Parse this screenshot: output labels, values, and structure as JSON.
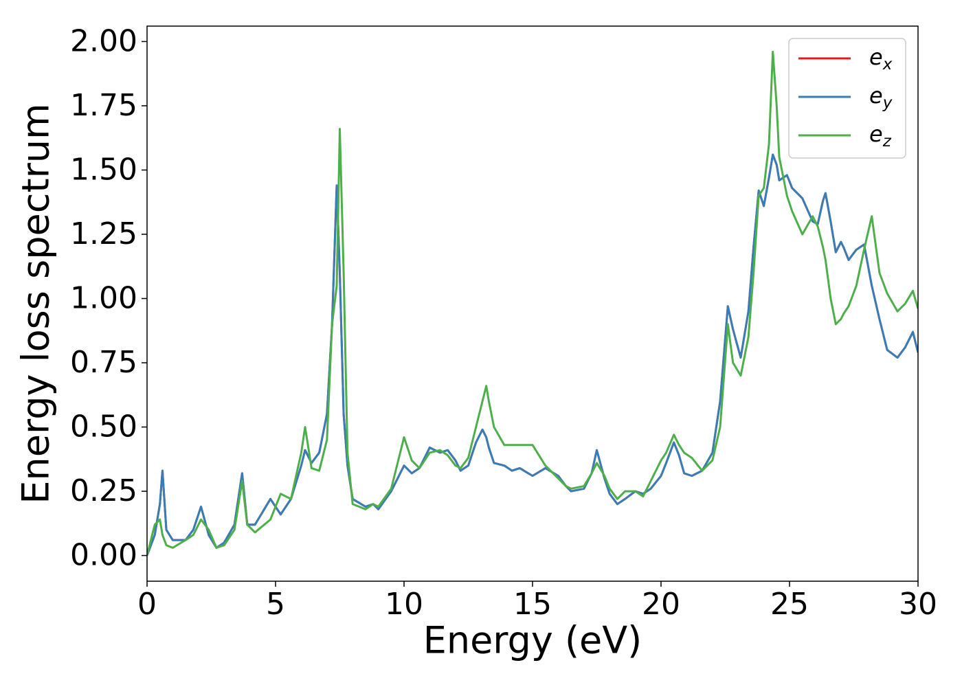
{
  "chart_data": {
    "type": "line",
    "xlabel": "Energy (eV)",
    "ylabel": "Energy loss spectrum",
    "xlim": [
      0,
      30
    ],
    "xticks": [
      0,
      5,
      10,
      15,
      20,
      25,
      30
    ],
    "ylim": [
      -0.1,
      2.06
    ],
    "yticks": [
      {
        "value": 0,
        "label": "0.00"
      },
      {
        "value": 0.25,
        "label": "0.25"
      },
      {
        "value": 0.5,
        "label": "0.50"
      },
      {
        "value": 0.75,
        "label": "0.75"
      },
      {
        "value": 1,
        "label": "1.00"
      },
      {
        "value": 1.25,
        "label": "1.25"
      },
      {
        "value": 1.5,
        "label": "1.50"
      },
      {
        "value": 1.75,
        "label": "1.75"
      },
      {
        "value": 2,
        "label": "2.00"
      }
    ],
    "legend": "upper right",
    "x": [
      0,
      0.3,
      0.5,
      0.6,
      0.75,
      1.0,
      1.5,
      1.8,
      2.1,
      2.4,
      2.7,
      3.0,
      3.4,
      3.7,
      3.9,
      4.2,
      4.8,
      5.2,
      5.6,
      6.0,
      6.15,
      6.4,
      6.7,
      7.0,
      7.2,
      7.38,
      7.5,
      7.65,
      7.8,
      8.0,
      8.5,
      8.8,
      9.0,
      9.5,
      10.0,
      10.3,
      10.6,
      11.0,
      11.4,
      11.7,
      12.0,
      12.2,
      12.5,
      12.8,
      13.05,
      13.2,
      13.3,
      13.5,
      13.9,
      14.2,
      14.5,
      15.0,
      15.5,
      16.0,
      16.3,
      16.5,
      17.0,
      17.3,
      17.5,
      17.8,
      18.0,
      18.3,
      18.6,
      19.0,
      19.3,
      19.6,
      20.0,
      20.2,
      20.5,
      20.7,
      20.9,
      21.2,
      21.6,
      22.0,
      22.3,
      22.6,
      22.8,
      23.1,
      23.4,
      23.6,
      23.8,
      24.0,
      24.2,
      24.35,
      24.5,
      24.6,
      24.9,
      25.1,
      25.5,
      25.9,
      26.1,
      26.3,
      26.4,
      26.6,
      26.8,
      27.0,
      27.1,
      27.3,
      27.6,
      27.9,
      28.2,
      28.5,
      28.8,
      29.2,
      29.5,
      29.8,
      30.0
    ],
    "series": [
      {
        "name": "e_x",
        "color": "#e41a1c",
        "values": [
          0,
          0.08,
          0.2,
          0.33,
          0.1,
          0.06,
          0.06,
          0.1,
          0.19,
          0.08,
          0.03,
          0.05,
          0.12,
          0.32,
          0.12,
          0.12,
          0.22,
          0.16,
          0.22,
          0.35,
          0.41,
          0.36,
          0.4,
          0.55,
          0.9,
          1.44,
          1.1,
          0.55,
          0.35,
          0.22,
          0.19,
          0.2,
          0.18,
          0.25,
          0.35,
          0.32,
          0.34,
          0.42,
          0.4,
          0.41,
          0.37,
          0.33,
          0.35,
          0.44,
          0.49,
          0.46,
          0.42,
          0.36,
          0.35,
          0.33,
          0.34,
          0.31,
          0.34,
          0.31,
          0.27,
          0.25,
          0.26,
          0.32,
          0.41,
          0.3,
          0.24,
          0.2,
          0.22,
          0.25,
          0.24,
          0.26,
          0.31,
          0.36,
          0.44,
          0.39,
          0.32,
          0.31,
          0.33,
          0.4,
          0.6,
          0.97,
          0.88,
          0.77,
          0.95,
          1.2,
          1.42,
          1.36,
          1.47,
          1.56,
          1.52,
          1.46,
          1.48,
          1.43,
          1.39,
          1.3,
          1.29,
          1.38,
          1.41,
          1.3,
          1.18,
          1.22,
          1.2,
          1.15,
          1.19,
          1.21,
          1.05,
          0.92,
          0.8,
          0.77,
          0.81,
          0.87,
          0.79
        ]
      },
      {
        "name": "e_y",
        "color": "#377eb8",
        "values": [
          0,
          0.08,
          0.2,
          0.33,
          0.1,
          0.06,
          0.06,
          0.1,
          0.19,
          0.08,
          0.03,
          0.05,
          0.12,
          0.32,
          0.12,
          0.12,
          0.22,
          0.16,
          0.22,
          0.35,
          0.41,
          0.36,
          0.4,
          0.55,
          0.9,
          1.44,
          1.1,
          0.55,
          0.35,
          0.22,
          0.19,
          0.2,
          0.18,
          0.25,
          0.35,
          0.32,
          0.34,
          0.42,
          0.4,
          0.41,
          0.37,
          0.33,
          0.35,
          0.44,
          0.49,
          0.46,
          0.42,
          0.36,
          0.35,
          0.33,
          0.34,
          0.31,
          0.34,
          0.31,
          0.27,
          0.25,
          0.26,
          0.32,
          0.41,
          0.3,
          0.24,
          0.2,
          0.22,
          0.25,
          0.24,
          0.26,
          0.31,
          0.36,
          0.44,
          0.39,
          0.32,
          0.31,
          0.33,
          0.4,
          0.6,
          0.97,
          0.88,
          0.77,
          0.95,
          1.2,
          1.42,
          1.36,
          1.47,
          1.56,
          1.52,
          1.46,
          1.48,
          1.43,
          1.39,
          1.3,
          1.29,
          1.38,
          1.41,
          1.3,
          1.18,
          1.22,
          1.2,
          1.15,
          1.19,
          1.21,
          1.05,
          0.92,
          0.8,
          0.77,
          0.81,
          0.87,
          0.79
        ]
      },
      {
        "name": "e_z",
        "color": "#4daf4a",
        "values": [
          0,
          0.12,
          0.14,
          0.08,
          0.04,
          0.03,
          0.06,
          0.08,
          0.14,
          0.1,
          0.03,
          0.04,
          0.1,
          0.29,
          0.12,
          0.09,
          0.14,
          0.24,
          0.22,
          0.4,
          0.5,
          0.34,
          0.33,
          0.45,
          0.9,
          1.05,
          1.66,
          1.1,
          0.4,
          0.2,
          0.18,
          0.2,
          0.19,
          0.26,
          0.46,
          0.37,
          0.34,
          0.4,
          0.41,
          0.39,
          0.35,
          0.34,
          0.38,
          0.5,
          0.6,
          0.66,
          0.6,
          0.5,
          0.43,
          0.43,
          0.43,
          0.43,
          0.35,
          0.3,
          0.27,
          0.26,
          0.27,
          0.32,
          0.36,
          0.31,
          0.26,
          0.22,
          0.25,
          0.25,
          0.23,
          0.29,
          0.37,
          0.4,
          0.47,
          0.43,
          0.4,
          0.38,
          0.33,
          0.37,
          0.5,
          0.9,
          0.75,
          0.7,
          0.85,
          1.1,
          1.4,
          1.43,
          1.6,
          1.96,
          1.75,
          1.55,
          1.4,
          1.34,
          1.25,
          1.32,
          1.28,
          1.2,
          1.15,
          1.0,
          0.9,
          0.92,
          0.94,
          0.97,
          1.05,
          1.19,
          1.32,
          1.1,
          1.02,
          0.95,
          0.98,
          1.03,
          0.96
        ]
      }
    ]
  }
}
